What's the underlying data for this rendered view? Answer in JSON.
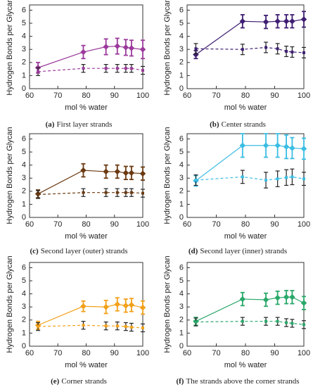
{
  "chart_data": [
    {
      "type": "line",
      "caption_label": "(a)",
      "caption": "First layer strands",
      "x_label": "mol % water",
      "y_label": "Hydrogen Bonds per Glycan",
      "x": [
        63,
        79,
        87,
        91,
        94,
        96,
        100
      ],
      "xlim": [
        60,
        100
      ],
      "xticks": [
        60,
        70,
        80,
        90,
        100
      ],
      "ylim": [
        0,
        6.4
      ],
      "yticks": [
        0,
        1,
        2,
        3,
        4,
        5,
        6
      ],
      "series": [
        {
          "color": "#9b3a9b",
          "line_style": "solid",
          "values": [
            1.6,
            2.8,
            3.2,
            3.25,
            3.15,
            3.1,
            3.0
          ],
          "errors": [
            0.4,
            0.5,
            0.6,
            0.6,
            0.6,
            0.6,
            0.7
          ]
        },
        {
          "color": "#9b3a9b",
          "line_style": "dashed",
          "values": [
            1.3,
            1.55,
            1.55,
            1.55,
            1.55,
            1.55,
            1.4
          ],
          "errors": [
            0.3,
            0.3,
            0.3,
            0.3,
            0.3,
            0.3,
            0.3
          ]
        }
      ]
    },
    {
      "type": "line",
      "caption_label": "(b)",
      "caption": "Center strands",
      "x_label": "mol % water",
      "y_label": "Hydrogen Bonds per Glycan",
      "x": [
        63,
        79,
        87,
        91,
        94,
        96,
        100
      ],
      "xlim": [
        60,
        100
      ],
      "xticks": [
        60,
        70,
        80,
        90,
        100
      ],
      "ylim": [
        0,
        6.4
      ],
      "yticks": [
        0,
        1,
        2,
        3,
        4,
        5,
        6
      ],
      "series": [
        {
          "color": "#3f1f73",
          "line_style": "solid",
          "values": [
            2.6,
            5.15,
            5.1,
            5.15,
            5.15,
            5.15,
            5.3
          ],
          "errors": [
            0.3,
            0.5,
            0.5,
            0.5,
            0.5,
            0.5,
            0.6
          ]
        },
        {
          "color": "#3f1f73",
          "line_style": "dashed",
          "values": [
            3.05,
            3.0,
            3.15,
            3.05,
            2.85,
            2.8,
            2.75
          ],
          "errors": [
            0.4,
            0.4,
            0.4,
            0.4,
            0.4,
            0.4,
            0.4
          ]
        }
      ]
    },
    {
      "type": "line",
      "caption_label": "(c)",
      "caption": "Second layer (outer) strands",
      "x_label": "mol % water",
      "y_label": "Hydrogen Bonds per Glycan",
      "x": [
        63,
        79,
        87,
        91,
        94,
        96,
        100
      ],
      "xlim": [
        60,
        100
      ],
      "xticks": [
        60,
        70,
        80,
        90,
        100
      ],
      "ylim": [
        0,
        6.4
      ],
      "yticks": [
        0,
        1,
        2,
        3,
        4,
        5,
        6
      ],
      "series": [
        {
          "color": "#6b3a12",
          "line_style": "solid",
          "values": [
            1.8,
            3.6,
            3.5,
            3.5,
            3.4,
            3.4,
            3.35
          ],
          "errors": [
            0.3,
            0.5,
            0.5,
            0.5,
            0.5,
            0.5,
            0.5
          ]
        },
        {
          "color": "#6b3a12",
          "line_style": "dashed",
          "values": [
            1.75,
            1.9,
            1.9,
            1.9,
            1.9,
            1.9,
            1.85
          ],
          "errors": [
            0.3,
            0.3,
            0.3,
            0.3,
            0.3,
            0.3,
            0.3
          ]
        }
      ]
    },
    {
      "type": "line",
      "caption_label": "(d)",
      "caption": "Second layer (inner) strands",
      "x_label": "mol % water",
      "y_label": "Hydrogen Bonds per Glycan",
      "x": [
        63,
        79,
        87,
        91,
        94,
        96,
        100
      ],
      "xlim": [
        60,
        100
      ],
      "xticks": [
        60,
        70,
        80,
        90,
        100
      ],
      "ylim": [
        0,
        6.4
      ],
      "yticks": [
        0,
        1,
        2,
        3,
        4,
        5,
        6
      ],
      "series": [
        {
          "color": "#3bbde4",
          "line_style": "solid",
          "values": [
            2.8,
            5.5,
            5.5,
            5.5,
            5.4,
            5.3,
            5.25
          ],
          "errors": [
            0.4,
            0.9,
            0.9,
            0.9,
            0.9,
            0.8,
            0.8
          ]
        },
        {
          "color": "#3bbde4",
          "line_style": "dashed",
          "values": [
            2.85,
            3.1,
            2.85,
            2.95,
            3.05,
            3.1,
            2.95
          ],
          "errors": [
            0.4,
            0.5,
            0.6,
            0.6,
            0.6,
            0.6,
            0.5
          ]
        }
      ]
    },
    {
      "type": "line",
      "caption_label": "(e)",
      "caption": "Corner strands",
      "x_label": "mol % water",
      "y_label": "Hydrogen Bonds per Glycan",
      "x": [
        63,
        79,
        87,
        91,
        94,
        96,
        100
      ],
      "xlim": [
        60,
        100
      ],
      "xticks": [
        60,
        70,
        80,
        90,
        100
      ],
      "ylim": [
        0,
        6.4
      ],
      "yticks": [
        0,
        1,
        2,
        3,
        4,
        5,
        6
      ],
      "series": [
        {
          "color": "#f2a11a",
          "line_style": "solid",
          "values": [
            1.6,
            3.05,
            3.0,
            3.2,
            3.1,
            3.15,
            2.95
          ],
          "errors": [
            0.3,
            0.4,
            0.5,
            0.5,
            0.5,
            0.5,
            0.5
          ]
        },
        {
          "color": "#f2a11a",
          "line_style": "dashed",
          "values": [
            1.5,
            1.6,
            1.55,
            1.55,
            1.5,
            1.45,
            1.4
          ],
          "errors": [
            0.3,
            0.3,
            0.3,
            0.3,
            0.3,
            0.3,
            0.3
          ]
        }
      ]
    },
    {
      "type": "line",
      "caption_label": "(f)",
      "caption": "The strands above the corner strands",
      "x_label": "mol % water",
      "y_label": "Hydrogen Bonds per Glycan",
      "x": [
        63,
        79,
        87,
        91,
        94,
        96,
        100
      ],
      "xlim": [
        60,
        100
      ],
      "xticks": [
        60,
        70,
        80,
        90,
        100
      ],
      "ylim": [
        0,
        6.4
      ],
      "yticks": [
        0,
        1,
        2,
        3,
        4,
        5,
        6
      ],
      "series": [
        {
          "color": "#2aa86a",
          "line_style": "solid",
          "values": [
            1.9,
            3.6,
            3.55,
            3.7,
            3.75,
            3.75,
            3.3
          ],
          "errors": [
            0.3,
            0.5,
            0.5,
            0.5,
            0.5,
            0.5,
            0.5
          ]
        },
        {
          "color": "#2aa86a",
          "line_style": "dashed",
          "values": [
            1.85,
            1.9,
            1.9,
            1.9,
            1.8,
            1.75,
            1.65
          ],
          "errors": [
            0.3,
            0.3,
            0.3,
            0.3,
            0.3,
            0.3,
            0.3
          ]
        }
      ]
    }
  ]
}
